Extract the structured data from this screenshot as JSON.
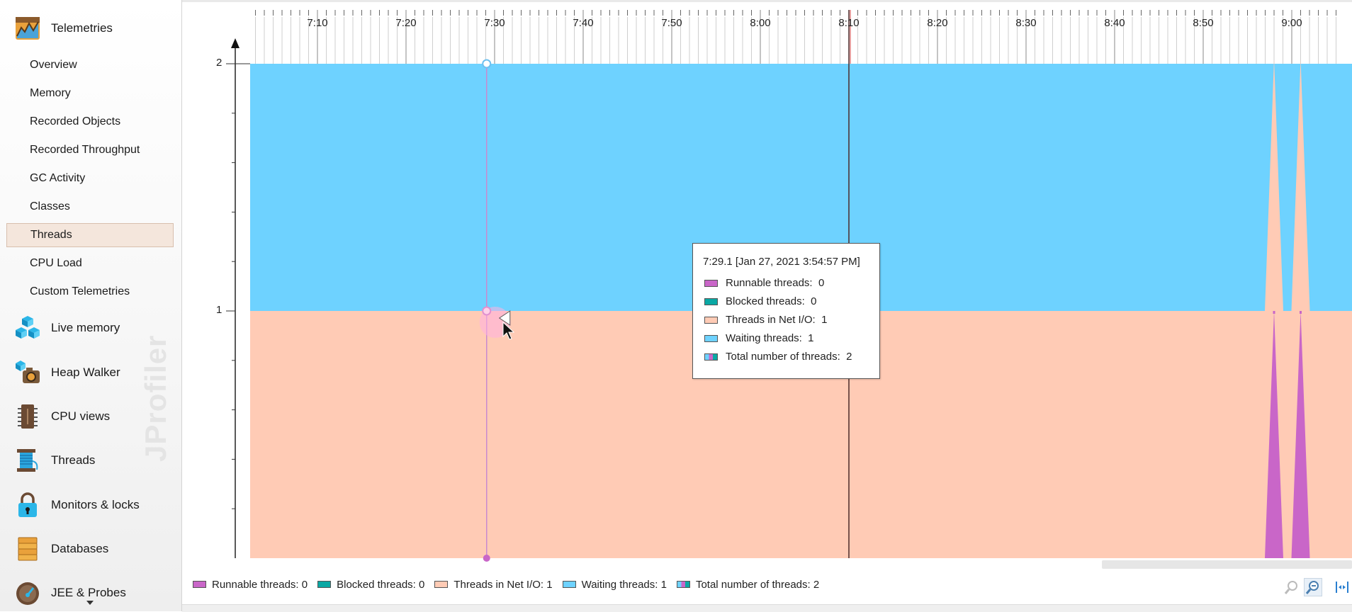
{
  "sidebar": {
    "categories": [
      {
        "label": "Telemetries",
        "icon": "telemetries-icon"
      },
      {
        "label": "Live memory",
        "icon": "live-memory-icon"
      },
      {
        "label": "Heap Walker",
        "icon": "heap-walker-icon"
      },
      {
        "label": "CPU views",
        "icon": "cpu-views-icon"
      },
      {
        "label": "Threads",
        "icon": "threads-spool-icon"
      },
      {
        "label": "Monitors & locks",
        "icon": "lock-icon"
      },
      {
        "label": "Databases",
        "icon": "database-icon"
      },
      {
        "label": "JEE & Probes",
        "icon": "gauge-icon"
      }
    ],
    "telemetry_items": [
      {
        "label": "Overview"
      },
      {
        "label": "Memory"
      },
      {
        "label": "Recorded Objects"
      },
      {
        "label": "Recorded Throughput"
      },
      {
        "label": "GC Activity"
      },
      {
        "label": "Classes"
      },
      {
        "label": "Threads",
        "selected": true
      },
      {
        "label": "CPU Load"
      },
      {
        "label": "Custom Telemetries"
      }
    ],
    "watermark": "JProfiler"
  },
  "chart_data": {
    "type": "area",
    "stacked": true,
    "x_ticks": [
      "7:10",
      "7:20",
      "7:30",
      "7:40",
      "7:50",
      "8:00",
      "8:10",
      "8:20",
      "8:30",
      "8:40",
      "8:50",
      "9:00"
    ],
    "y_ticks": [
      "1",
      "2"
    ],
    "ylim": [
      0,
      2
    ],
    "series": [
      {
        "name": "Runnable threads",
        "color": "#c966c8"
      },
      {
        "name": "Blocked threads",
        "color": "#0aa8a4"
      },
      {
        "name": "Threads in Net I/O",
        "color": "#ffcbb5"
      },
      {
        "name": "Waiting threads",
        "color": "#6ed2ff"
      }
    ],
    "baseline": {
      "net_io": 1,
      "waiting": 1,
      "runnable": 0,
      "blocked": 0
    },
    "spikes": [
      {
        "time": "8:58",
        "runnable": 1,
        "net_io": 0,
        "waiting": 1
      },
      {
        "time": "9:01",
        "runnable": 1,
        "net_io": 0,
        "waiting": 1
      }
    ],
    "marker_time": "8:10",
    "cursor_time": "7:29.1"
  },
  "tooltip": {
    "title": "7:29.1 [Jan 27, 2021 3:54:57 PM]",
    "rows": [
      {
        "label": "Runnable threads:",
        "value": "0",
        "color": "#c966c8"
      },
      {
        "label": "Blocked threads:",
        "value": "0",
        "color": "#0aa8a4"
      },
      {
        "label": "Threads in Net I/O:",
        "value": "1",
        "color": "#ffcbb5"
      },
      {
        "label": "Waiting threads:",
        "value": "1",
        "color": "#6ed2ff"
      },
      {
        "label": "Total number of threads:",
        "value": "2",
        "color": "multi"
      }
    ]
  },
  "legend": [
    {
      "text": "Runnable threads: 0",
      "color": "#c966c8"
    },
    {
      "text": "Blocked threads: 0",
      "color": "#0aa8a4"
    },
    {
      "text": "Threads in Net I/O: 1",
      "color": "#ffcbb5"
    },
    {
      "text": "Waiting threads: 1",
      "color": "#6ed2ff"
    },
    {
      "text": "Total number of threads: 2",
      "color": "multi"
    }
  ],
  "toolbar": {
    "zoom_in_icon": "zoom-in-icon",
    "zoom_out_icon": "zoom-out-icon",
    "fit_icon": "fit-width-icon"
  }
}
